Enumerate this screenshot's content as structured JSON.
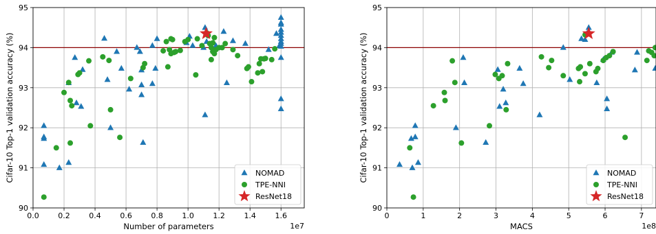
{
  "colors": {
    "nomad": "#1f77b4",
    "tpe": "#2ca02c",
    "resnet": "#d62728",
    "reference_line": "#8b0000",
    "grid": "#b0b0b0"
  },
  "chart_data": [
    {
      "type": "scatter",
      "xlabel": "Number of parameters",
      "ylabel": "Cifar-10 Top-1 validation accuracy (%)",
      "x_offset_label": "1e7",
      "xlim": [
        0,
        1.75
      ],
      "ylim": [
        90,
        95
      ],
      "xticks": [
        0.0,
        0.2,
        0.4,
        0.6,
        0.8,
        1.0,
        1.2,
        1.4,
        1.6
      ],
      "xtick_labels": [
        "0.0",
        "0.2",
        "0.4",
        "0.6",
        "0.8",
        "1.0",
        "1.2",
        "1.4",
        "1.6"
      ],
      "yticks": [
        90,
        91,
        92,
        93,
        94,
        95
      ],
      "ytick_labels": [
        "90",
        "91",
        "92",
        "93",
        "94",
        "95"
      ],
      "grid": true,
      "legend_position": "bottom-right",
      "reference_y": 94.0,
      "series": [
        {
          "name": "NOMAD",
          "marker": "triangle",
          "points": [
            [
              0.07,
              92.05
            ],
            [
              0.07,
              91.77
            ],
            [
              0.07,
              91.73
            ],
            [
              0.07,
              91.08
            ],
            [
              0.17,
              91.0
            ],
            [
              0.23,
              91.13
            ],
            [
              0.23,
              93.12
            ],
            [
              0.27,
              93.75
            ],
            [
              0.28,
              92.62
            ],
            [
              0.31,
              92.53
            ],
            [
              0.32,
              93.45
            ],
            [
              0.46,
              94.23
            ],
            [
              0.48,
              93.2
            ],
            [
              0.5,
              92.0
            ],
            [
              0.54,
              93.9
            ],
            [
              0.57,
              93.48
            ],
            [
              0.62,
              92.96
            ],
            [
              0.67,
              94.0
            ],
            [
              0.69,
              93.9
            ],
            [
              0.7,
              93.44
            ],
            [
              0.7,
              93.07
            ],
            [
              0.7,
              92.82
            ],
            [
              0.71,
              91.63
            ],
            [
              0.77,
              93.1
            ],
            [
              0.77,
              94.05
            ],
            [
              0.79,
              93.48
            ],
            [
              0.8,
              94.22
            ],
            [
              0.99,
              94.12
            ],
            [
              1.01,
              94.28
            ],
            [
              1.03,
              94.05
            ],
            [
              1.1,
              94.0
            ],
            [
              1.11,
              92.32
            ],
            [
              1.11,
              94.5
            ],
            [
              1.12,
              94.15
            ],
            [
              1.16,
              93.95
            ],
            [
              1.18,
              94.05
            ],
            [
              1.23,
              94.4
            ],
            [
              1.25,
              93.12
            ],
            [
              1.29,
              94.17
            ],
            [
              1.37,
              94.1
            ],
            [
              1.52,
              93.95
            ],
            [
              1.57,
              94.35
            ],
            [
              1.59,
              94.05
            ],
            [
              1.6,
              94.75
            ],
            [
              1.6,
              94.62
            ],
            [
              1.6,
              94.58
            ],
            [
              1.6,
              94.45
            ],
            [
              1.6,
              94.38
            ],
            [
              1.6,
              94.3
            ],
            [
              1.6,
              94.22
            ],
            [
              1.6,
              94.15
            ],
            [
              1.6,
              94.1
            ],
            [
              1.6,
              94.03
            ],
            [
              1.6,
              93.75
            ],
            [
              1.6,
              92.72
            ],
            [
              1.6,
              92.47
            ]
          ]
        },
        {
          "name": "TPE-NNI",
          "marker": "circle",
          "points": [
            [
              0.07,
              90.27
            ],
            [
              0.15,
              91.5
            ],
            [
              0.2,
              92.88
            ],
            [
              0.23,
              93.13
            ],
            [
              0.24,
              92.68
            ],
            [
              0.24,
              91.62
            ],
            [
              0.25,
              92.55
            ],
            [
              0.29,
              93.33
            ],
            [
              0.3,
              93.37
            ],
            [
              0.36,
              93.67
            ],
            [
              0.37,
              92.05
            ],
            [
              0.45,
              93.77
            ],
            [
              0.49,
              93.68
            ],
            [
              0.5,
              92.45
            ],
            [
              0.56,
              91.76
            ],
            [
              0.63,
              93.23
            ],
            [
              0.71,
              93.5
            ],
            [
              0.72,
              93.6
            ],
            [
              0.84,
              93.92
            ],
            [
              0.86,
              94.15
            ],
            [
              0.87,
              93.52
            ],
            [
              0.88,
              93.95
            ],
            [
              0.89,
              93.85
            ],
            [
              0.89,
              94.22
            ],
            [
              0.9,
              94.2
            ],
            [
              0.91,
              93.88
            ],
            [
              0.92,
              93.9
            ],
            [
              0.95,
              93.93
            ],
            [
              0.98,
              94.15
            ],
            [
              1.0,
              94.2
            ],
            [
              1.05,
              93.32
            ],
            [
              1.06,
              94.22
            ],
            [
              1.09,
              94.05
            ],
            [
              1.12,
              94.37
            ],
            [
              1.13,
              94.3
            ],
            [
              1.14,
              94.1
            ],
            [
              1.15,
              93.7
            ],
            [
              1.15,
              94.0
            ],
            [
              1.16,
              93.9
            ],
            [
              1.16,
              94.12
            ],
            [
              1.17,
              93.85
            ],
            [
              1.17,
              94.25
            ],
            [
              1.18,
              93.95
            ],
            [
              1.2,
              94.0
            ],
            [
              1.22,
              94.0
            ],
            [
              1.24,
              94.1
            ],
            [
              1.29,
              93.95
            ],
            [
              1.32,
              93.8
            ],
            [
              1.38,
              93.48
            ],
            [
              1.39,
              93.52
            ],
            [
              1.41,
              93.15
            ],
            [
              1.45,
              93.37
            ],
            [
              1.46,
              93.6
            ],
            [
              1.47,
              93.72
            ],
            [
              1.48,
              93.4
            ],
            [
              1.49,
              93.72
            ],
            [
              1.5,
              93.73
            ],
            [
              1.54,
              93.7
            ],
            [
              1.56,
              93.97
            ]
          ]
        },
        {
          "name": "ResNet18",
          "marker": "star",
          "points": [
            [
              1.117,
              94.35
            ]
          ]
        }
      ]
    },
    {
      "type": "scatter",
      "xlabel": "MACS",
      "ylabel": "Cifar-10 Top-1 validation accuracy (%)",
      "x_offset_label": "1e8",
      "xlim": [
        0,
        7.4
      ],
      "ylim": [
        90,
        95
      ],
      "xticks": [
        0,
        1,
        2,
        3,
        4,
        5,
        6,
        7
      ],
      "xtick_labels": [
        "0",
        "1",
        "2",
        "3",
        "4",
        "5",
        "6",
        "7"
      ],
      "yticks": [
        90,
        91,
        92,
        93,
        94,
        95
      ],
      "ytick_labels": [
        "90",
        "91",
        "92",
        "93",
        "94",
        "95"
      ],
      "grid": true,
      "legend_position": "bottom-right",
      "reference_y": 94.0,
      "series": [
        {
          "name": "NOMAD",
          "marker": "triangle",
          "points": [
            [
              0.35,
              91.08
            ],
            [
              0.67,
              91.73
            ],
            [
              0.7,
              91.0
            ],
            [
              0.78,
              92.05
            ],
            [
              0.78,
              91.77
            ],
            [
              0.86,
              91.13
            ],
            [
              1.9,
              92.0
            ],
            [
              2.1,
              93.75
            ],
            [
              2.13,
              93.12
            ],
            [
              2.72,
              91.63
            ],
            [
              3.05,
              93.45
            ],
            [
              3.1,
              92.53
            ],
            [
              3.2,
              92.96
            ],
            [
              3.27,
              92.62
            ],
            [
              3.65,
              93.48
            ],
            [
              3.75,
              93.1
            ],
            [
              4.2,
              92.32
            ],
            [
              4.85,
              94.0
            ],
            [
              5.03,
              93.2
            ],
            [
              5.35,
              94.22
            ],
            [
              5.45,
              94.2
            ],
            [
              5.5,
              94.35
            ],
            [
              5.55,
              94.5
            ],
            [
              5.77,
              93.12
            ],
            [
              5.95,
              93.7
            ],
            [
              6.05,
              92.72
            ],
            [
              6.05,
              92.47
            ],
            [
              6.18,
              93.88
            ],
            [
              6.82,
              93.44
            ],
            [
              6.88,
              93.88
            ],
            [
              7.38,
              93.48
            ]
          ]
        },
        {
          "name": "TPE-NNI",
          "marker": "circle",
          "points": [
            [
              0.63,
              91.5
            ],
            [
              0.73,
              90.27
            ],
            [
              1.28,
              92.55
            ],
            [
              1.58,
              92.88
            ],
            [
              1.6,
              92.68
            ],
            [
              1.8,
              93.67
            ],
            [
              1.87,
              93.13
            ],
            [
              2.05,
              91.62
            ],
            [
              2.82,
              92.05
            ],
            [
              2.98,
              93.33
            ],
            [
              3.08,
              93.23
            ],
            [
              3.17,
              93.3
            ],
            [
              3.28,
              92.45
            ],
            [
              3.32,
              93.6
            ],
            [
              4.25,
              93.77
            ],
            [
              4.45,
              93.5
            ],
            [
              4.53,
              93.68
            ],
            [
              4.85,
              93.3
            ],
            [
              5.27,
              93.48
            ],
            [
              5.3,
              93.15
            ],
            [
              5.32,
              93.52
            ],
            [
              5.45,
              93.35
            ],
            [
              5.45,
              94.32
            ],
            [
              5.58,
              93.6
            ],
            [
              5.75,
              93.4
            ],
            [
              5.8,
              93.48
            ],
            [
              5.95,
              93.68
            ],
            [
              6.03,
              93.75
            ],
            [
              6.12,
              93.8
            ],
            [
              6.22,
              93.9
            ],
            [
              6.55,
              91.76
            ],
            [
              7.15,
              93.68
            ],
            [
              7.2,
              93.92
            ],
            [
              7.28,
              93.88
            ],
            [
              7.35,
              93.8
            ],
            [
              7.38,
              94.0
            ]
          ]
        },
        {
          "name": "ResNet18",
          "marker": "star",
          "points": [
            [
              5.55,
              94.35
            ]
          ]
        }
      ]
    }
  ]
}
